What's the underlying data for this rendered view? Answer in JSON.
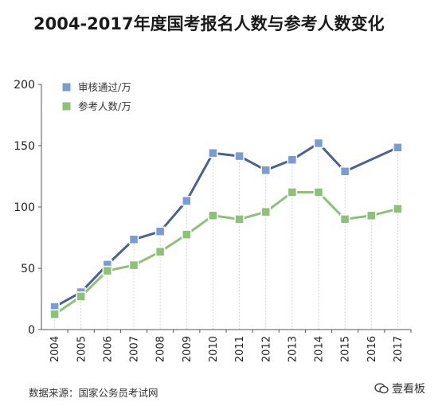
{
  "chart_data": {
    "type": "line",
    "title": "2004-2017年度国考报名人数与参考人数变化",
    "categories": [
      "2004",
      "2005",
      "2006",
      "2007",
      "2008",
      "2009",
      "2010",
      "2011",
      "2012",
      "2013",
      "2014",
      "2015",
      "2016",
      "2017"
    ],
    "series": [
      {
        "name": "审核通过/万",
        "color": "#4a6196",
        "marker_color": "#7a9cd4",
        "values": [
          18.5,
          30.5,
          53,
          73.5,
          80,
          105,
          144,
          141.5,
          130,
          138.5,
          152,
          129,
          null,
          148.5
        ]
      },
      {
        "name": "参考人数/万",
        "color": "#8cc177",
        "marker_color": "#8cc177",
        "values": [
          12.5,
          27,
          48,
          52.5,
          63.5,
          77.5,
          93,
          90,
          96,
          112,
          112,
          90,
          93,
          98.5
        ]
      }
    ],
    "xlabel": "",
    "ylabel": "",
    "ylim": [
      0,
      200
    ],
    "yticks": [
      0,
      50,
      100,
      150,
      200
    ],
    "grid": "vertical-dashed",
    "legend": "top-left"
  },
  "footer": {
    "source": "数据来源：国家公务员考试网",
    "watermark": "壹看板"
  }
}
